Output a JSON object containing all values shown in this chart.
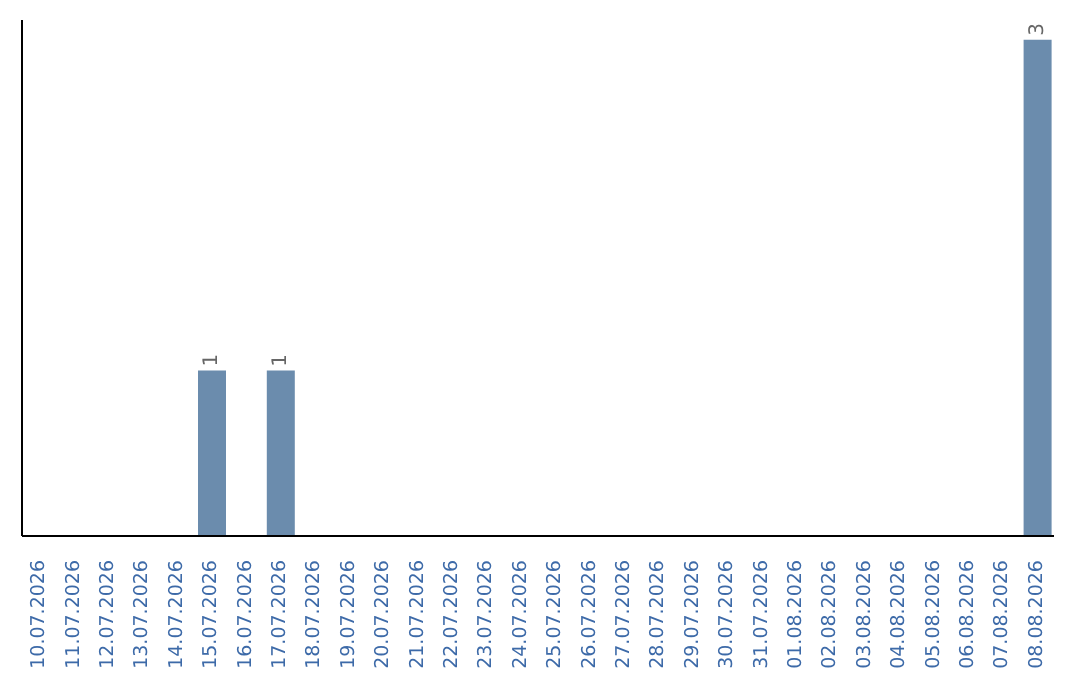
{
  "chart_data": {
    "type": "bar",
    "categories": [
      "10.07.2026",
      "11.07.2026",
      "12.07.2026",
      "13.07.2026",
      "14.07.2026",
      "15.07.2026",
      "16.07.2026",
      "17.07.2026",
      "18.07.2026",
      "19.07.2026",
      "20.07.2026",
      "21.07.2026",
      "22.07.2026",
      "23.07.2026",
      "24.07.2026",
      "25.07.2026",
      "26.07.2026",
      "27.07.2026",
      "28.07.2026",
      "29.07.2026",
      "30.07.2026",
      "31.07.2026",
      "01.08.2026",
      "02.08.2026",
      "03.08.2026",
      "04.08.2026",
      "05.08.2026",
      "06.08.2026",
      "07.08.2026",
      "08.08.2026"
    ],
    "values": [
      0,
      0,
      0,
      0,
      0,
      1,
      0,
      1,
      0,
      0,
      0,
      0,
      0,
      0,
      0,
      0,
      0,
      0,
      0,
      0,
      0,
      0,
      0,
      0,
      0,
      0,
      0,
      0,
      0,
      3
    ],
    "value_labels": [
      null,
      null,
      null,
      null,
      null,
      "1",
      null,
      "1",
      null,
      null,
      null,
      null,
      null,
      null,
      null,
      null,
      null,
      null,
      null,
      null,
      null,
      null,
      null,
      null,
      null,
      null,
      null,
      null,
      null,
      "3"
    ],
    "color": "#6b8cad",
    "grid": false,
    "legend": false
  }
}
